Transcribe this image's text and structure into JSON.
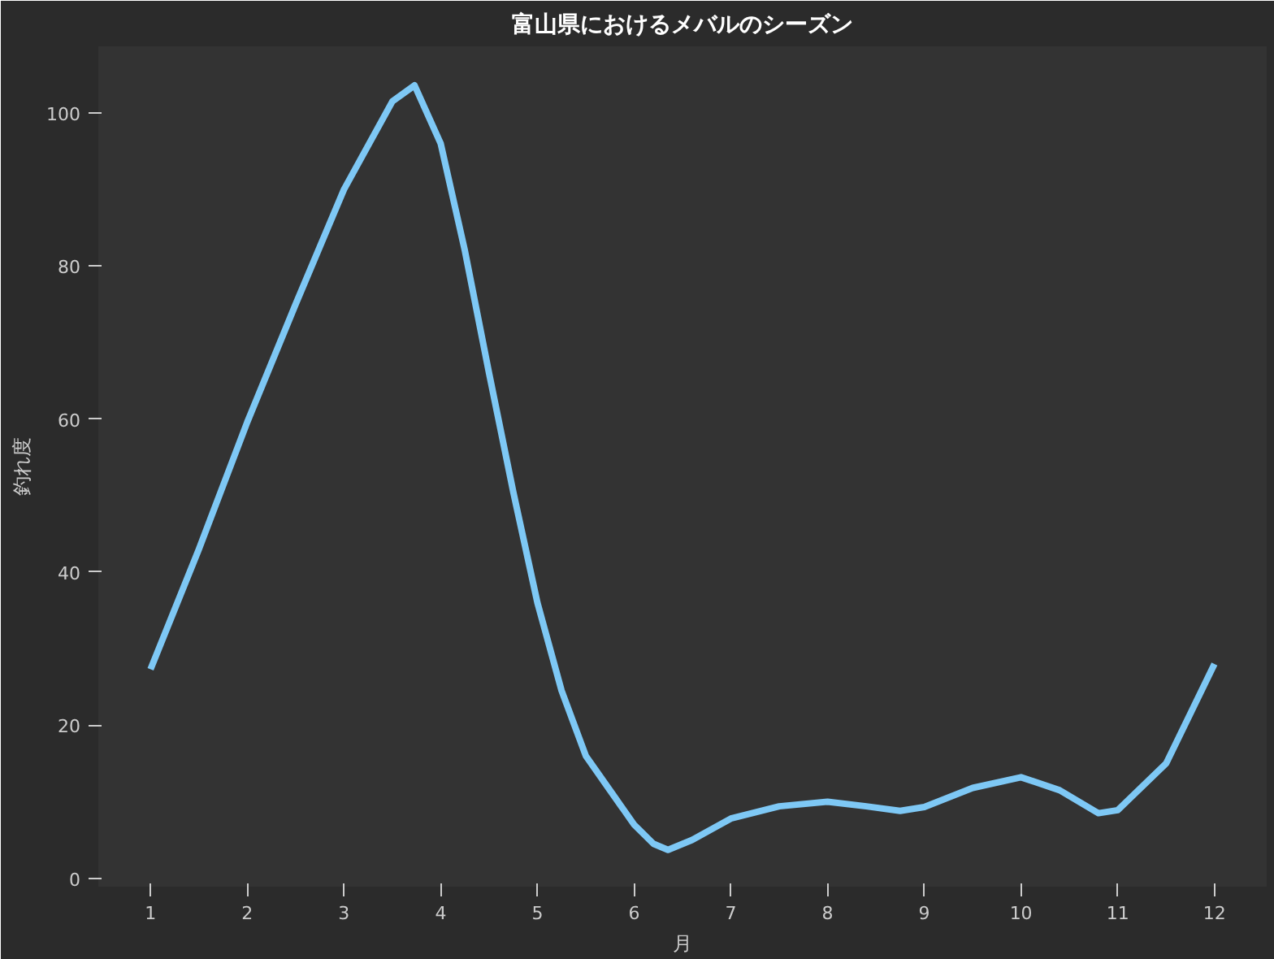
{
  "chart_data": {
    "type": "line",
    "title": "富山県におけるメバルのシーズン",
    "xlabel": "月",
    "ylabel": "釣れ度",
    "x": [
      1,
      1.5,
      2,
      2.5,
      3,
      3.5,
      3.73,
      4,
      4.25,
      4.5,
      4.75,
      5,
      5.25,
      5.5,
      5.75,
      6,
      6.2,
      6.35,
      6.6,
      7,
      7.5,
      8,
      8.4,
      8.75,
      9,
      9.5,
      10,
      10.4,
      10.8,
      11,
      11.5,
      12
    ],
    "series": [
      {
        "color": "#7ec8f5",
        "values": [
          27.3,
          43,
          59.6,
          75,
          90,
          101.5,
          103.6,
          96,
          82,
          66,
          50.5,
          36,
          24.5,
          16,
          11.5,
          7,
          4.5,
          3.7,
          5,
          7.8,
          9.4,
          10,
          9.4,
          8.8,
          9.3,
          11.8,
          13.2,
          11.5,
          8.5,
          8.9,
          15,
          28
        ]
      }
    ],
    "xlim": [
      0.46,
      12.54
    ],
    "ylim": [
      -1.1,
      108.7
    ],
    "xticks": [
      1,
      2,
      3,
      4,
      5,
      6,
      7,
      8,
      9,
      10,
      11,
      12
    ],
    "yticks": [
      0,
      20,
      40,
      60,
      80,
      100
    ],
    "grid": false,
    "marker": "none",
    "line_style": "solid"
  }
}
